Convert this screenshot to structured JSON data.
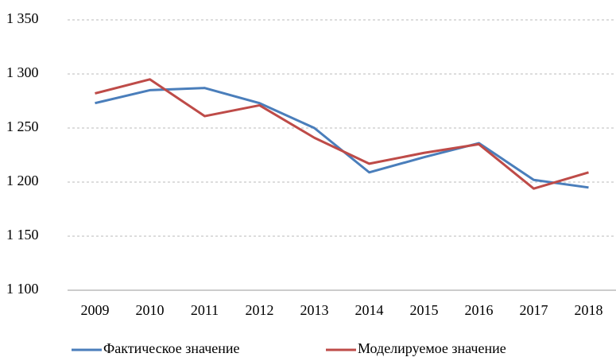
{
  "chart_data": {
    "type": "line",
    "categories": [
      "2009",
      "2010",
      "2011",
      "2012",
      "2013",
      "2014",
      "2015",
      "2016",
      "2017",
      "2018"
    ],
    "series": [
      {
        "name": "Фактическое значение",
        "color": "#4a7ebb",
        "values": [
          1273,
          1285,
          1287,
          1273,
          1250,
          1209,
          1223,
          1236,
          1202,
          1195
        ]
      },
      {
        "name": "Моделируемое значение",
        "color": "#be4b48",
        "values": [
          1282,
          1295,
          1261,
          1271,
          1241,
          1217,
          1227,
          1235,
          1194,
          1209
        ]
      }
    ],
    "ylim": [
      1100,
      1350
    ],
    "yticks": [
      {
        "value": 1100,
        "label": "1 100"
      },
      {
        "value": 1150,
        "label": "1 150"
      },
      {
        "value": 1200,
        "label": "1 200"
      },
      {
        "value": 1250,
        "label": "1 250"
      },
      {
        "value": 1300,
        "label": "1 300"
      },
      {
        "value": 1350,
        "label": "1 350"
      }
    ],
    "grid": true,
    "legend": "bottom"
  }
}
